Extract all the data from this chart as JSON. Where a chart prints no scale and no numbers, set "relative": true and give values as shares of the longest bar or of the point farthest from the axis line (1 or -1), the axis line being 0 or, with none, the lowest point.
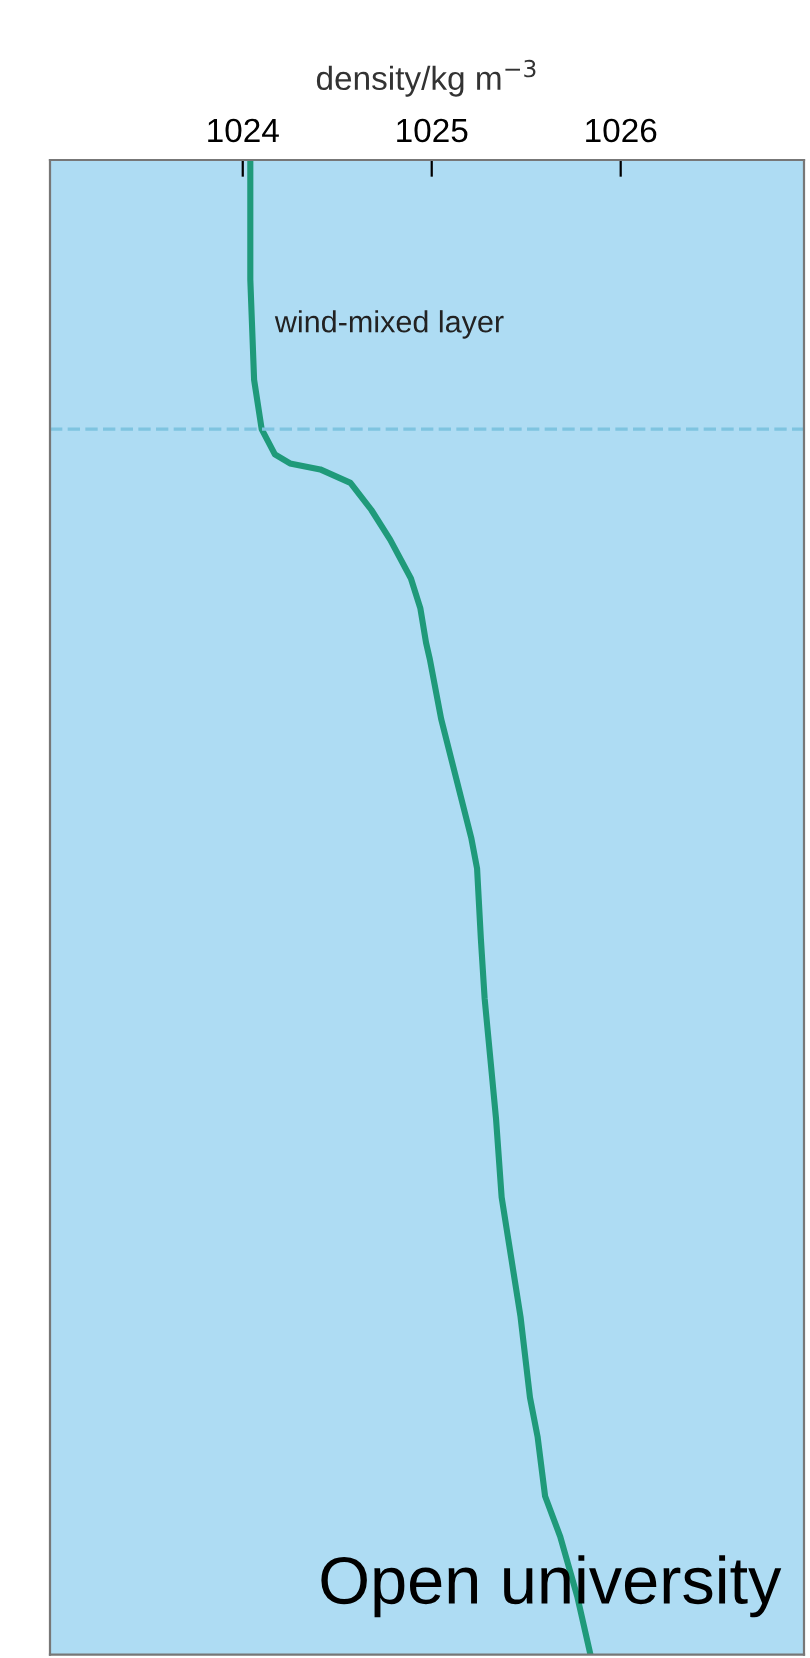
{
  "chart_data": {
    "type": "line",
    "xlabel": "density/kg m$^{−3}$",
    "relative": true,
    "x": [
      1024.04,
      1024.04,
      1024.06,
      1024.1,
      1024.17,
      1024.25,
      1024.41,
      1024.57,
      1024.68,
      1024.78,
      1024.89,
      1024.94,
      1024.97,
      1024.99,
      1025.05,
      1025.13,
      1025.21,
      1025.24,
      1025.26,
      1025.28,
      1025.31,
      1025.34,
      1025.37,
      1025.42,
      1025.47,
      1025.52,
      1025.56,
      1025.6,
      1025.68,
      1025.77,
      1025.84
    ],
    "series": [
      {
        "color": "#1f9a7a",
        "values": [
          0,
          -0.08,
          -0.147,
          -0.18,
          -0.197,
          -0.203,
          -0.207,
          -0.216,
          -0.234,
          -0.254,
          -0.28,
          -0.3,
          -0.323,
          -0.334,
          -0.374,
          -0.414,
          -0.454,
          -0.474,
          -0.521,
          -0.561,
          -0.601,
          -0.641,
          -0.694,
          -0.734,
          -0.774,
          -0.828,
          -0.854,
          -0.894,
          -0.921,
          -0.961,
          -1
        ]
      }
    ],
    "xlim": [
      1022.98,
      1026.97
    ],
    "xticks": [
      1024,
      1025,
      1026
    ],
    "ref_lines": [
      {
        "axis": "y",
        "value": -0.18,
        "color": "#7fc4e0",
        "line_style": "dashed"
      }
    ],
    "annotations": [
      {
        "text": "wind-mixed layer",
        "x": 1024.08,
        "y": -0.11
      },
      "Open university"
    ],
    "grid": false,
    "legend": false,
    "marker": "none",
    "line_style": "solid"
  }
}
